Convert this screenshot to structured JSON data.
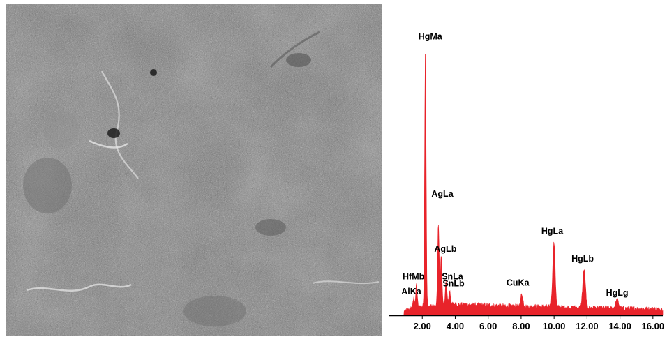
{
  "micrograph": {
    "kind": "SEM micrograph (grayscale surface texture)"
  },
  "chart_data": {
    "type": "line",
    "colors": {
      "spectrum": "#e8232a",
      "axis": "#000000"
    },
    "xlabel": "",
    "ylabel": "",
    "xlim": [
      0.0,
      16.6
    ],
    "ylim": [
      0,
      100
    ],
    "x_ticks": [
      {
        "value": 2.0,
        "label": "2.00"
      },
      {
        "value": 4.0,
        "label": "4.00"
      },
      {
        "value": 6.0,
        "label": "6.00"
      },
      {
        "value": 8.0,
        "label": "8.00"
      },
      {
        "value": 10.0,
        "label": "10.00"
      },
      {
        "value": 12.0,
        "label": "12.00"
      },
      {
        "value": 14.0,
        "label": "14.00"
      },
      {
        "value": 16.0,
        "label": "16.00"
      }
    ],
    "peaks": [
      {
        "label": "AlKa",
        "energy": 1.49,
        "height": 3.5
      },
      {
        "label": "HfMb",
        "energy": 1.65,
        "height": 8.5
      },
      {
        "label": "HgMa",
        "energy": 2.19,
        "height": 97
      },
      {
        "label": "AgLa",
        "energy": 2.98,
        "height": 31
      },
      {
        "label": "AgLb",
        "energy": 3.15,
        "height": 19
      },
      {
        "label": "SnLa",
        "energy": 3.44,
        "height": 9
      },
      {
        "label": "SnLb",
        "energy": 3.66,
        "height": 5
      },
      {
        "label": "CuKa",
        "energy": 8.04,
        "height": 4.5
      },
      {
        "label": "HgLa",
        "energy": 9.99,
        "height": 24
      },
      {
        "label": "HgLb",
        "energy": 11.82,
        "height": 14
      },
      {
        "label": "HgLg",
        "energy": 13.83,
        "height": 3
      }
    ]
  }
}
